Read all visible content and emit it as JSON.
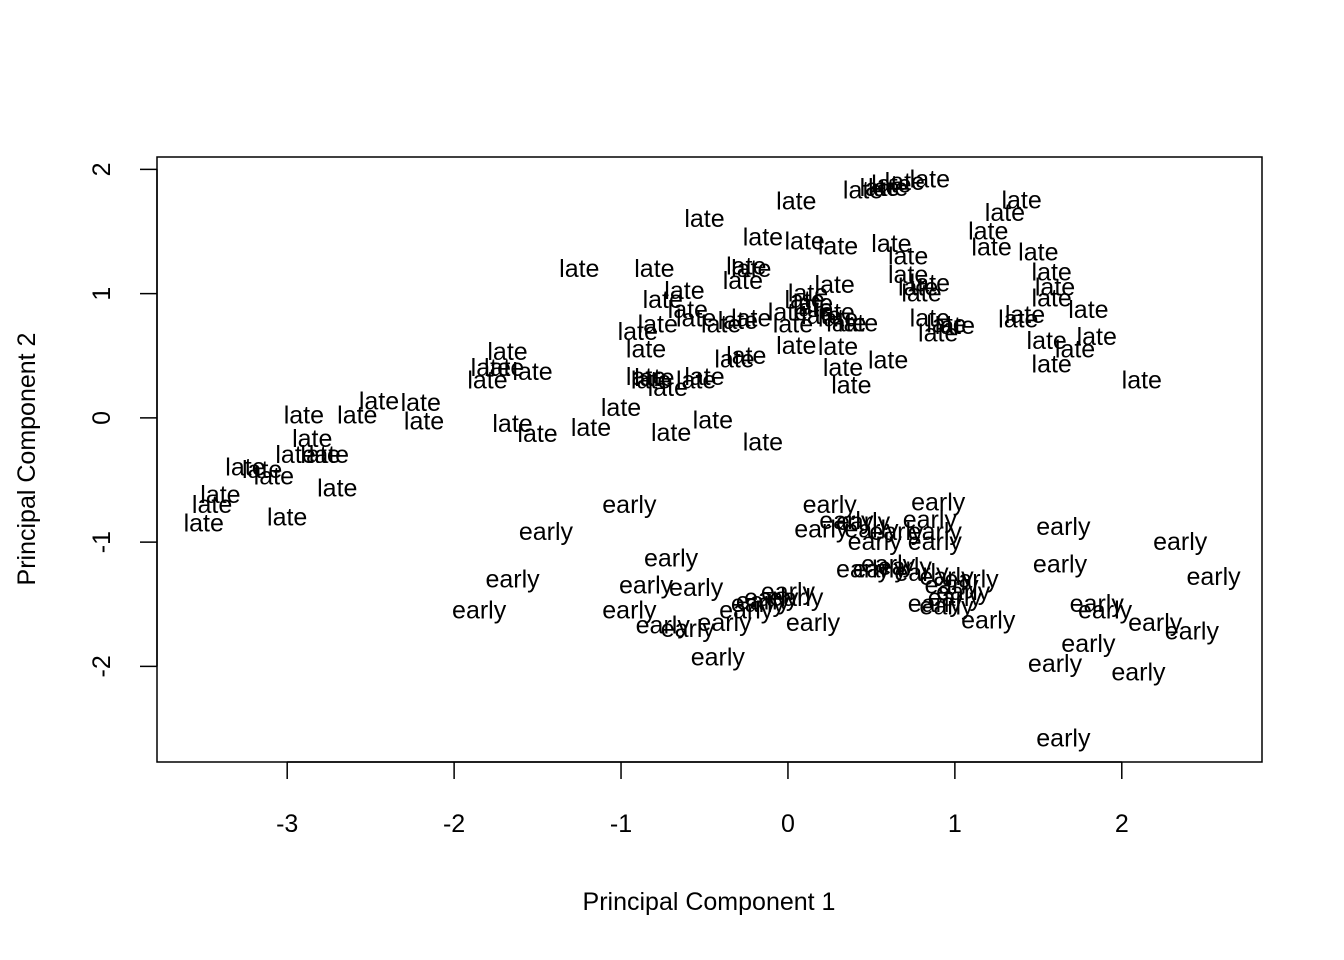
{
  "chart_data": {
    "type": "scatter",
    "title": "",
    "xlabel": "Principal Component 1",
    "ylabel": "Principal Component 2",
    "xlim": [
      -3.78,
      2.84
    ],
    "ylim": [
      -2.77,
      2.1
    ],
    "x_ticks": [
      -3,
      -2,
      -1,
      0,
      1,
      2
    ],
    "x_tick_labels": [
      "-3",
      "-2",
      "-1",
      "0",
      "1",
      "2"
    ],
    "y_ticks": [
      -2,
      -1,
      0,
      1,
      2
    ],
    "y_tick_labels": [
      "-2",
      "-1",
      "0",
      "1",
      "2"
    ],
    "grid": false,
    "legend": "none",
    "marker": "text",
    "color": "#000000",
    "points": [
      {
        "x": -3.5,
        "y": -0.85,
        "label": "late"
      },
      {
        "x": -3.45,
        "y": -0.7,
        "label": "late"
      },
      {
        "x": -3.4,
        "y": -0.62,
        "label": "late"
      },
      {
        "x": -3.25,
        "y": -0.4,
        "label": "late"
      },
      {
        "x": -3.15,
        "y": -0.42,
        "label": "late"
      },
      {
        "x": -3.08,
        "y": -0.47,
        "label": "late"
      },
      {
        "x": -3.0,
        "y": -0.8,
        "label": "late"
      },
      {
        "x": -2.95,
        "y": -0.3,
        "label": "late"
      },
      {
        "x": -2.85,
        "y": -0.17,
        "label": "late"
      },
      {
        "x": -2.8,
        "y": -0.3,
        "label": "late"
      },
      {
        "x": -2.75,
        "y": -0.3,
        "label": "late"
      },
      {
        "x": -2.7,
        "y": -0.57,
        "label": "late"
      },
      {
        "x": -2.9,
        "y": 0.02,
        "label": "late"
      },
      {
        "x": -2.58,
        "y": 0.02,
        "label": "late"
      },
      {
        "x": -2.45,
        "y": 0.13,
        "label": "late"
      },
      {
        "x": -2.2,
        "y": 0.12,
        "label": "late"
      },
      {
        "x": -2.18,
        "y": -0.03,
        "label": "late"
      },
      {
        "x": -1.8,
        "y": 0.3,
        "label": "late"
      },
      {
        "x": -1.78,
        "y": 0.4,
        "label": "late"
      },
      {
        "x": -1.7,
        "y": 0.4,
        "label": "late"
      },
      {
        "x": -1.68,
        "y": 0.53,
        "label": "late"
      },
      {
        "x": -1.53,
        "y": 0.37,
        "label": "late"
      },
      {
        "x": -1.65,
        "y": -0.05,
        "label": "late"
      },
      {
        "x": -1.5,
        "y": -0.13,
        "label": "late"
      },
      {
        "x": -1.25,
        "y": 1.2,
        "label": "late"
      },
      {
        "x": -1.18,
        "y": -0.08,
        "label": "late"
      },
      {
        "x": -1.0,
        "y": 0.08,
        "label": "late"
      },
      {
        "x": -0.9,
        "y": 0.69,
        "label": "late"
      },
      {
        "x": -0.85,
        "y": 0.55,
        "label": "late"
      },
      {
        "x": -0.85,
        "y": 0.33,
        "label": "late"
      },
      {
        "x": -0.82,
        "y": 0.3,
        "label": "late"
      },
      {
        "x": -0.8,
        "y": 0.32,
        "label": "late"
      },
      {
        "x": -0.78,
        "y": 0.75,
        "label": "late"
      },
      {
        "x": -0.75,
        "y": 0.95,
        "label": "late"
      },
      {
        "x": -0.8,
        "y": 1.2,
        "label": "late"
      },
      {
        "x": -0.72,
        "y": 0.24,
        "label": "late"
      },
      {
        "x": -0.7,
        "y": -0.12,
        "label": "late"
      },
      {
        "x": -0.62,
        "y": 1.02,
        "label": "late"
      },
      {
        "x": -0.6,
        "y": 0.87,
        "label": "late"
      },
      {
        "x": -0.55,
        "y": 0.8,
        "label": "late"
      },
      {
        "x": -0.55,
        "y": 0.3,
        "label": "late"
      },
      {
        "x": -0.5,
        "y": 0.33,
        "label": "late"
      },
      {
        "x": -0.5,
        "y": 1.6,
        "label": "late"
      },
      {
        "x": -0.45,
        "y": -0.02,
        "label": "late"
      },
      {
        "x": -0.4,
        "y": 0.75,
        "label": "late"
      },
      {
        "x": -0.32,
        "y": 0.47,
        "label": "late"
      },
      {
        "x": -0.3,
        "y": 0.78,
        "label": "late"
      },
      {
        "x": -0.27,
        "y": 1.1,
        "label": "late"
      },
      {
        "x": -0.25,
        "y": 0.5,
        "label": "late"
      },
      {
        "x": -0.25,
        "y": 1.22,
        "label": "late"
      },
      {
        "x": -0.22,
        "y": 1.2,
        "label": "late"
      },
      {
        "x": -0.22,
        "y": 0.8,
        "label": "late"
      },
      {
        "x": -0.15,
        "y": 1.45,
        "label": "late"
      },
      {
        "x": -0.15,
        "y": -0.2,
        "label": "late"
      },
      {
        "x": 0.05,
        "y": 1.74,
        "label": "late"
      },
      {
        "x": 0.0,
        "y": 0.85,
        "label": "late"
      },
      {
        "x": 0.03,
        "y": 0.75,
        "label": "late"
      },
      {
        "x": 0.05,
        "y": 0.58,
        "label": "late"
      },
      {
        "x": 0.1,
        "y": 0.95,
        "label": "late"
      },
      {
        "x": 0.12,
        "y": 1.0,
        "label": "late"
      },
      {
        "x": 0.15,
        "y": 0.92,
        "label": "late"
      },
      {
        "x": 0.1,
        "y": 1.42,
        "label": "late"
      },
      {
        "x": 0.15,
        "y": 0.88,
        "label": "late"
      },
      {
        "x": 0.2,
        "y": 0.82,
        "label": "late"
      },
      {
        "x": 0.28,
        "y": 0.85,
        "label": "late"
      },
      {
        "x": 0.3,
        "y": 0.8,
        "label": "late"
      },
      {
        "x": 0.28,
        "y": 1.07,
        "label": "late"
      },
      {
        "x": 0.33,
        "y": 0.4,
        "label": "late"
      },
      {
        "x": 0.3,
        "y": 0.57,
        "label": "late"
      },
      {
        "x": 0.35,
        "y": 0.76,
        "label": "late"
      },
      {
        "x": 0.42,
        "y": 0.76,
        "label": "late"
      },
      {
        "x": 0.38,
        "y": 0.26,
        "label": "late"
      },
      {
        "x": 0.3,
        "y": 1.38,
        "label": "late"
      },
      {
        "x": 0.45,
        "y": 1.83,
        "label": "late"
      },
      {
        "x": 0.55,
        "y": 1.85,
        "label": "late"
      },
      {
        "x": 0.6,
        "y": 1.85,
        "label": "late"
      },
      {
        "x": 0.62,
        "y": 1.88,
        "label": "late"
      },
      {
        "x": 0.7,
        "y": 1.9,
        "label": "late"
      },
      {
        "x": 0.85,
        "y": 1.92,
        "label": "late"
      },
      {
        "x": 0.6,
        "y": 0.46,
        "label": "late"
      },
      {
        "x": 0.62,
        "y": 1.4,
        "label": "late"
      },
      {
        "x": 0.72,
        "y": 1.15,
        "label": "late"
      },
      {
        "x": 0.72,
        "y": 1.3,
        "label": "late"
      },
      {
        "x": 0.78,
        "y": 1.05,
        "label": "late"
      },
      {
        "x": 0.8,
        "y": 1.0,
        "label": "late"
      },
      {
        "x": 0.85,
        "y": 1.08,
        "label": "late"
      },
      {
        "x": 0.85,
        "y": 0.8,
        "label": "late"
      },
      {
        "x": 0.9,
        "y": 0.68,
        "label": "late"
      },
      {
        "x": 0.95,
        "y": 0.75,
        "label": "late"
      },
      {
        "x": 1.0,
        "y": 0.74,
        "label": "late"
      },
      {
        "x": 1.2,
        "y": 1.5,
        "label": "late"
      },
      {
        "x": 1.22,
        "y": 1.37,
        "label": "late"
      },
      {
        "x": 1.3,
        "y": 1.65,
        "label": "late"
      },
      {
        "x": 1.4,
        "y": 1.75,
        "label": "late"
      },
      {
        "x": 1.38,
        "y": 0.79,
        "label": "late"
      },
      {
        "x": 1.42,
        "y": 0.83,
        "label": "late"
      },
      {
        "x": 1.5,
        "y": 1.33,
        "label": "late"
      },
      {
        "x": 1.58,
        "y": 1.17,
        "label": "late"
      },
      {
        "x": 1.58,
        "y": 0.96,
        "label": "late"
      },
      {
        "x": 1.55,
        "y": 0.62,
        "label": "late"
      },
      {
        "x": 1.58,
        "y": 0.43,
        "label": "late"
      },
      {
        "x": 1.6,
        "y": 1.05,
        "label": "late"
      },
      {
        "x": 1.72,
        "y": 0.55,
        "label": "late"
      },
      {
        "x": 1.8,
        "y": 0.87,
        "label": "late"
      },
      {
        "x": 1.85,
        "y": 0.65,
        "label": "late"
      },
      {
        "x": 2.12,
        "y": 0.3,
        "label": "late"
      },
      {
        "x": -0.95,
        "y": -0.7,
        "label": "early"
      },
      {
        "x": -1.45,
        "y": -0.92,
        "label": "early"
      },
      {
        "x": -1.65,
        "y": -1.3,
        "label": "early"
      },
      {
        "x": -1.85,
        "y": -1.55,
        "label": "early"
      },
      {
        "x": -0.7,
        "y": -1.13,
        "label": "early"
      },
      {
        "x": -0.85,
        "y": -1.35,
        "label": "early"
      },
      {
        "x": -0.95,
        "y": -1.55,
        "label": "early"
      },
      {
        "x": -0.55,
        "y": -1.37,
        "label": "early"
      },
      {
        "x": -0.75,
        "y": -1.67,
        "label": "early"
      },
      {
        "x": -0.6,
        "y": -1.7,
        "label": "early"
      },
      {
        "x": -0.38,
        "y": -1.65,
        "label": "early"
      },
      {
        "x": -0.42,
        "y": -1.93,
        "label": "early"
      },
      {
        "x": -0.25,
        "y": -1.55,
        "label": "early"
      },
      {
        "x": -0.18,
        "y": -1.5,
        "label": "early"
      },
      {
        "x": -0.15,
        "y": -1.48,
        "label": "early"
      },
      {
        "x": -0.1,
        "y": -1.45,
        "label": "early"
      },
      {
        "x": 0.0,
        "y": -1.4,
        "label": "early"
      },
      {
        "x": 0.05,
        "y": -1.45,
        "label": "early"
      },
      {
        "x": 0.15,
        "y": -1.65,
        "label": "early"
      },
      {
        "x": 0.25,
        "y": -0.7,
        "label": "early"
      },
      {
        "x": 0.2,
        "y": -0.9,
        "label": "early"
      },
      {
        "x": 0.35,
        "y": -0.83,
        "label": "early"
      },
      {
        "x": 0.45,
        "y": -0.84,
        "label": "early"
      },
      {
        "x": 0.5,
        "y": -0.9,
        "label": "early"
      },
      {
        "x": 0.52,
        "y": -1.0,
        "label": "early"
      },
      {
        "x": 0.65,
        "y": -0.92,
        "label": "early"
      },
      {
        "x": 0.45,
        "y": -1.22,
        "label": "early"
      },
      {
        "x": 0.55,
        "y": -1.22,
        "label": "early"
      },
      {
        "x": 0.6,
        "y": -1.18,
        "label": "early"
      },
      {
        "x": 0.7,
        "y": -1.2,
        "label": "early"
      },
      {
        "x": 0.8,
        "y": -1.25,
        "label": "early"
      },
      {
        "x": 0.9,
        "y": -0.68,
        "label": "early"
      },
      {
        "x": 0.85,
        "y": -0.82,
        "label": "early"
      },
      {
        "x": 0.88,
        "y": -0.92,
        "label": "early"
      },
      {
        "x": 0.88,
        "y": -1.0,
        "label": "early"
      },
      {
        "x": 0.95,
        "y": -1.28,
        "label": "early"
      },
      {
        "x": 0.98,
        "y": -1.35,
        "label": "early"
      },
      {
        "x": 0.88,
        "y": -1.5,
        "label": "early"
      },
      {
        "x": 0.95,
        "y": -1.52,
        "label": "early"
      },
      {
        "x": 1.0,
        "y": -1.45,
        "label": "early"
      },
      {
        "x": 1.05,
        "y": -1.4,
        "label": "early"
      },
      {
        "x": 1.1,
        "y": -1.3,
        "label": "early"
      },
      {
        "x": 1.2,
        "y": -1.63,
        "label": "early"
      },
      {
        "x": 1.65,
        "y": -0.88,
        "label": "early"
      },
      {
        "x": 1.63,
        "y": -1.18,
        "label": "early"
      },
      {
        "x": 1.85,
        "y": -1.5,
        "label": "early"
      },
      {
        "x": 1.8,
        "y": -1.82,
        "label": "early"
      },
      {
        "x": 1.9,
        "y": -1.55,
        "label": "early"
      },
      {
        "x": 1.6,
        "y": -1.98,
        "label": "early"
      },
      {
        "x": 2.1,
        "y": -2.05,
        "label": "early"
      },
      {
        "x": 2.35,
        "y": -1.0,
        "label": "early"
      },
      {
        "x": 2.55,
        "y": -1.28,
        "label": "early"
      },
      {
        "x": 2.2,
        "y": -1.65,
        "label": "early"
      },
      {
        "x": 2.42,
        "y": -1.72,
        "label": "early"
      },
      {
        "x": 1.65,
        "y": -2.58,
        "label": "early"
      }
    ]
  }
}
